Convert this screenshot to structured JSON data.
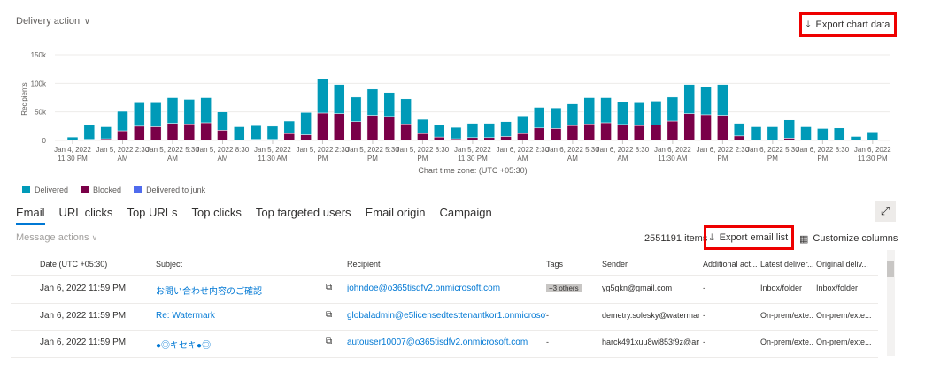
{
  "filter": {
    "label": "Delivery action"
  },
  "export_chart": {
    "label": "Export chart data"
  },
  "chart_data": {
    "type": "bar",
    "stacked": true,
    "ylabel": "Recipients",
    "xlabel": "Chart time zone: (UTC +05:30)",
    "ylim": [
      0,
      150000
    ],
    "yticks": [
      "0",
      "50k",
      "100k",
      "150k"
    ],
    "ytick_values": [
      0,
      50000,
      100000,
      150000
    ],
    "xtick_labels": [
      "Jan 4, 2022 11:30 PM",
      "Jan 5, 2022 2:30 AM",
      "Jan 5, 2022 5:30 AM",
      "Jan 5, 2022 8:30 AM",
      "Jan 5, 2022 11:30 AM",
      "Jan 5, 2022 2:30 PM",
      "Jan 5, 2022 5:30 PM",
      "Jan 5, 2022 8:30 PM",
      "Jan 5, 2022 11:30 PM",
      "Jan 6, 2022 2:30 AM",
      "Jan 6, 2022 5:30 AM",
      "Jan 6, 2022 8:30 AM",
      "Jan 6, 2022 11:30 AM",
      "Jan 6, 2022 2:30 PM",
      "Jan 6, 2022 5:30 PM",
      "Jan 6, 2022 8:30 PM",
      "Jan 6, 2022 11:30 PM"
    ],
    "xtick_every": 3,
    "grid": true,
    "legend_position": "bottom-left",
    "series": [
      {
        "name": "Delivered",
        "color": "#009ab8",
        "values": [
          6000,
          25000,
          21000,
          34000,
          41000,
          42000,
          45000,
          43000,
          44000,
          32000,
          23000,
          24000,
          23000,
          22000,
          39000,
          60000,
          51000,
          43000,
          46000,
          42000,
          44000,
          25000,
          21000,
          20000,
          25000,
          25000,
          26000,
          31000,
          36000,
          36000,
          38000,
          46000,
          44000,
          40000,
          40000,
          42000,
          42000,
          51000,
          49000,
          54000,
          22000,
          24000,
          24000,
          32000,
          23000,
          20000,
          22000,
          7000,
          15000
        ]
      },
      {
        "name": "Blocked",
        "color": "#7a0048",
        "values": [
          0,
          2000,
          3000,
          17000,
          25000,
          24000,
          30000,
          29000,
          31000,
          18000,
          1000,
          2000,
          2000,
          12000,
          10000,
          48000,
          47000,
          33000,
          44000,
          42000,
          29000,
          12000,
          6000,
          3000,
          5000,
          5000,
          7000,
          12000,
          22000,
          21000,
          26000,
          29000,
          31000,
          28000,
          26000,
          27000,
          34000,
          47000,
          45000,
          44000,
          8000,
          0,
          0,
          4000,
          1000,
          1000,
          0,
          0,
          0
        ]
      },
      {
        "name": "Delivered to junk",
        "color": "#4f6bed",
        "values": [
          0,
          0,
          0,
          0,
          0,
          0,
          0,
          0,
          0,
          0,
          0,
          0,
          0,
          0,
          0,
          0,
          0,
          0,
          0,
          0,
          0,
          0,
          0,
          0,
          0,
          0,
          0,
          0,
          0,
          0,
          0,
          0,
          0,
          0,
          0,
          0,
          0,
          0,
          0,
          0,
          0,
          0,
          0,
          0,
          0,
          0,
          0,
          0,
          0
        ]
      }
    ]
  },
  "tabs": [
    "Email",
    "URL clicks",
    "Top URLs",
    "Top clicks",
    "Top targeted users",
    "Email origin",
    "Campaign"
  ],
  "message_actions": "Message actions",
  "items_count": "2551191 items",
  "export_list": {
    "label": "Export email list"
  },
  "customize": {
    "label": "Customize columns"
  },
  "table": {
    "columns": [
      "Date (UTC +05:30)",
      "Subject",
      "Recipient",
      "Tags",
      "Sender",
      "Additional act...",
      "Latest deliver...",
      "Original deliv..."
    ],
    "rows": [
      {
        "date": "Jan 6, 2022 11:59 PM",
        "subject": "お問い合わせ内容のご確認",
        "recipient": "johndoe@o365tisdfv2.onmicrosoft.com",
        "tags": "+3 others",
        "sender": "yg5gkn@gmail.com",
        "additional": "-",
        "latest": "Inbox/folder",
        "original": "Inbox/folder"
      },
      {
        "date": "Jan 6, 2022 11:59 PM",
        "subject": "Re: Watermark",
        "recipient": "globaladmin@e5licensedtesttenantkor1.onmicrosoft.c",
        "tags": "-",
        "sender": "demetry.solesky@watermar...",
        "additional": "-",
        "latest": "On-prem/exte...",
        "original": "On-prem/exte..."
      },
      {
        "date": "Jan 6, 2022 11:59 PM",
        "subject": "●◎キセキ●◎",
        "recipient": "autouser10007@o365tisdfv2.onmicrosoft.com",
        "tags": "-",
        "sender": "harck491xuu8wi853f9z@an...",
        "additional": "-",
        "latest": "On-prem/exte...",
        "original": "On-prem/exte..."
      }
    ]
  }
}
